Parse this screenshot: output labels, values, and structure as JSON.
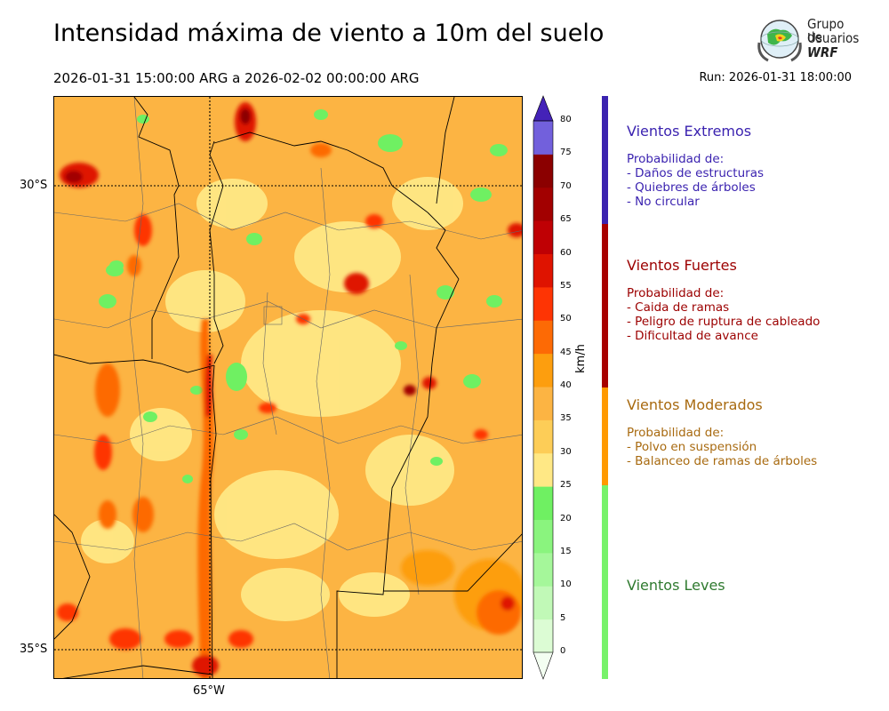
{
  "title": "Intensidad máxima de viento a 10m del suelo",
  "period": "2026-01-31 15:00:00 ARG  a  2026-02-02 00:00:00 ARG",
  "run": "Run: 2026-01-31 18:00:00",
  "logo": {
    "line1": "Grupo de",
    "line2": "Usuarios",
    "line3": "WRF"
  },
  "map": {
    "lat_labels": [
      "30°S",
      "35°S"
    ],
    "lon_labels": [
      "65°W"
    ],
    "field": "viento máximo a 10m"
  },
  "colorbar": {
    "units": "km/h",
    "ticks": [
      "0",
      "5",
      "10",
      "15",
      "20",
      "25",
      "30",
      "35",
      "40",
      "45",
      "50",
      "55",
      "60",
      "65",
      "70",
      "75",
      "80"
    ],
    "colors": [
      "#f3fef1",
      "#dcfcd4",
      "#c1f9b7",
      "#a5f79a",
      "#8af47e",
      "#6ff062",
      "#ffe885",
      "#fdcd57",
      "#fcb443",
      "#fd9e0e",
      "#fd6a05",
      "#fe3404",
      "#df1300",
      "#bf0004",
      "#a20000",
      "#8b0000",
      "#7260dc",
      "#563ccb",
      "#4422b8"
    ]
  },
  "categories": [
    {
      "name": "Vientos Extremos",
      "color": "#3b23b0",
      "lines": [
        "Probabilidad de:",
        "- Daños de estructuras",
        "- Quiebres de árboles",
        "- No circular"
      ]
    },
    {
      "name": "Vientos Fuertes",
      "color": "#9c0000",
      "lines": [
        "Probabilidad de:",
        "- Caida de ramas",
        "- Peligro de ruptura de cableado",
        "- Dificultad de avance"
      ]
    },
    {
      "name": "Vientos Moderados",
      "color": "#a86a10",
      "lines": [
        "Probabilidad de:",
        "- Polvo en suspensión",
        "- Balanceo de ramas de árboles"
      ]
    },
    {
      "name": "Vientos Leves",
      "color": "#2f7a2f",
      "lines": []
    }
  ],
  "scale_colors": {
    "extreme": "#3b23b0",
    "strong": "#a80000",
    "moderate": "#ff9900",
    "light": "#77f26a"
  }
}
